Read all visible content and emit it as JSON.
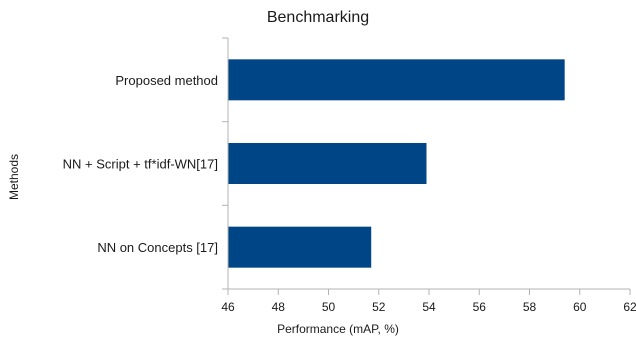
{
  "chart_data": {
    "type": "bar",
    "orientation": "horizontal",
    "title": "Benchmarking",
    "xlabel": "Performance (mAP, %)",
    "ylabel": "Methods",
    "categories": [
      "Proposed method",
      "NN + Script + tf*idf-WN[17]",
      "NN on Concepts [17]"
    ],
    "values": [
      59.4,
      53.9,
      51.7
    ],
    "xlim": [
      46,
      62
    ],
    "xticks": [
      46,
      48,
      50,
      52,
      54,
      56,
      58,
      60,
      62
    ],
    "bar_color": "#004586",
    "grid": false,
    "legend": "none"
  }
}
